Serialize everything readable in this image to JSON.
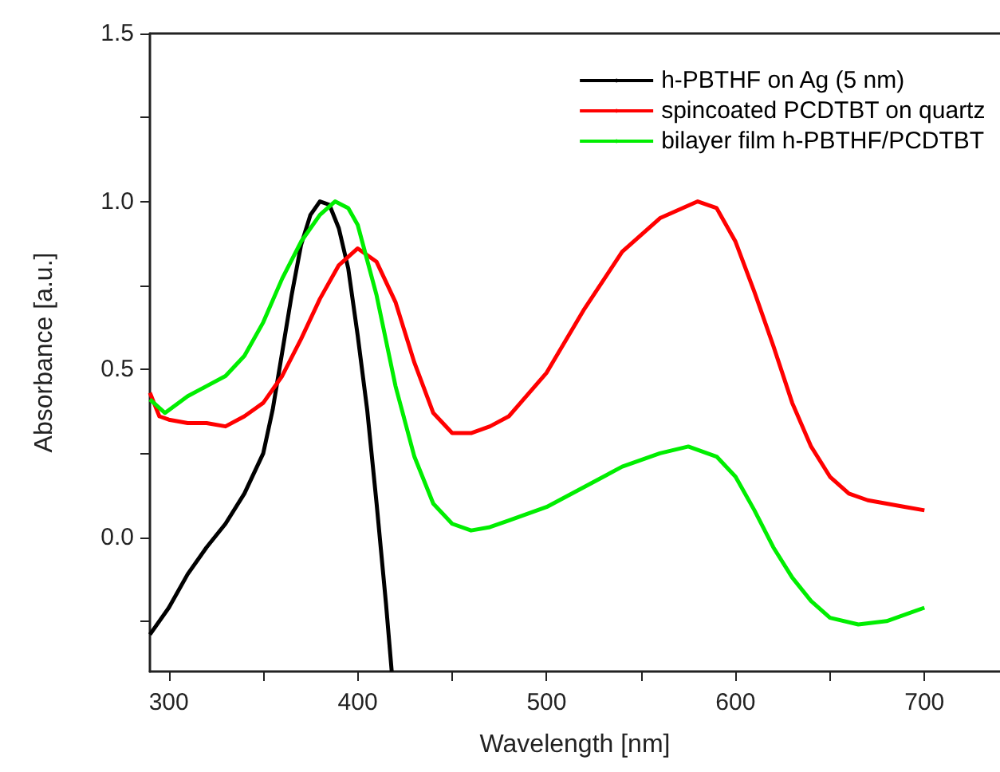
{
  "chart_data": {
    "type": "line",
    "xlabel": "Wavelength [nm]",
    "ylabel": "Absorbance [a.u.]",
    "xlim": [
      290,
      740
    ],
    "xticks": [
      300,
      {
        "value": 350,
        "label": null
      },
      400,
      {
        "value": 450,
        "label": null
      },
      500,
      {
        "value": 550,
        "label": null
      },
      600,
      {
        "value": 650,
        "label": null
      },
      700
    ],
    "ylim": [
      -0.4,
      1.5
    ],
    "yticks": [
      {
        "value": -0.25,
        "label": null
      },
      "0.0",
      {
        "value": 0.25,
        "label": null
      },
      0.5,
      {
        "value": 0.75,
        "label": null
      },
      "1.0",
      {
        "value": 1.25,
        "label": null
      },
      1.5
    ],
    "grid": false,
    "legend": "top right",
    "marker": "none",
    "line_style": "solid",
    "series": [
      {
        "name": "h-PBTHF on Ag (5 nm)",
        "color": "#000000",
        "x": [
          290,
          300,
          310,
          320,
          330,
          340,
          350,
          355,
          360,
          365,
          370,
          375,
          380,
          385,
          390,
          395,
          400,
          405,
          410,
          415,
          418
        ],
        "values": [
          -0.29,
          -0.21,
          -0.11,
          -0.03,
          0.04,
          0.13,
          0.25,
          0.38,
          0.55,
          0.72,
          0.87,
          0.96,
          1.0,
          0.99,
          0.92,
          0.8,
          0.6,
          0.38,
          0.1,
          -0.2,
          -0.4
        ]
      },
      {
        "name": "spincoated PCDTBT on quartz",
        "color": "#ff0000",
        "x": [
          290,
          295,
          300,
          310,
          320,
          330,
          340,
          350,
          360,
          370,
          380,
          390,
          400,
          410,
          420,
          430,
          440,
          450,
          460,
          470,
          480,
          500,
          520,
          540,
          560,
          580,
          590,
          600,
          610,
          620,
          630,
          640,
          650,
          660,
          670,
          680,
          690,
          700
        ],
        "values": [
          0.43,
          0.36,
          0.35,
          0.34,
          0.34,
          0.33,
          0.36,
          0.4,
          0.48,
          0.59,
          0.71,
          0.81,
          0.86,
          0.82,
          0.7,
          0.52,
          0.37,
          0.31,
          0.31,
          0.33,
          0.36,
          0.49,
          0.68,
          0.85,
          0.95,
          1.0,
          0.98,
          0.88,
          0.73,
          0.57,
          0.4,
          0.27,
          0.18,
          0.13,
          0.11,
          0.1,
          0.09,
          0.08
        ]
      },
      {
        "name": "bilayer film h-PBTHF/PCDTBT",
        "color": "#00ee00",
        "x": [
          290,
          298,
          310,
          320,
          330,
          340,
          350,
          360,
          370,
          380,
          388,
          395,
          400,
          410,
          420,
          430,
          440,
          450,
          460,
          470,
          480,
          500,
          520,
          540,
          560,
          575,
          590,
          600,
          610,
          620,
          630,
          640,
          650,
          665,
          680,
          700
        ],
        "values": [
          0.41,
          0.37,
          0.42,
          0.45,
          0.48,
          0.54,
          0.64,
          0.77,
          0.88,
          0.96,
          1.0,
          0.98,
          0.93,
          0.72,
          0.45,
          0.24,
          0.1,
          0.04,
          0.02,
          0.03,
          0.05,
          0.09,
          0.15,
          0.21,
          0.25,
          0.27,
          0.24,
          0.18,
          0.08,
          -0.03,
          -0.12,
          -0.19,
          -0.24,
          -0.26,
          -0.25,
          -0.21
        ]
      }
    ]
  }
}
